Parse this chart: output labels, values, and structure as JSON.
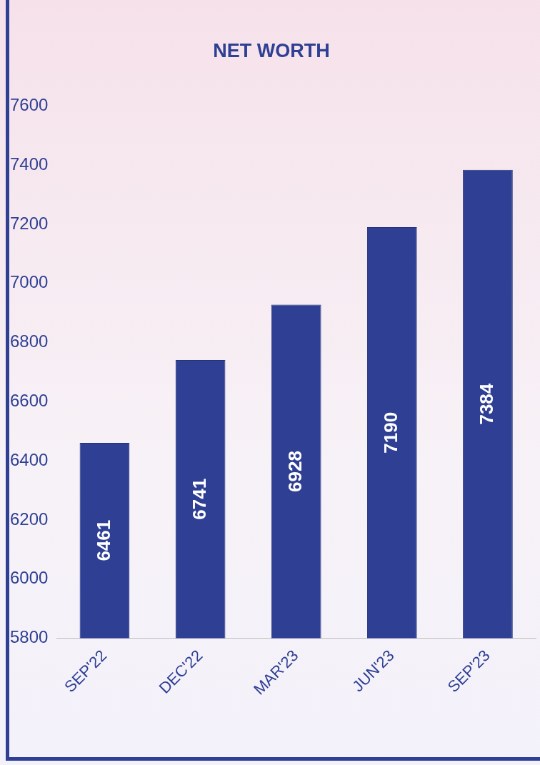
{
  "chart_data": {
    "type": "bar",
    "title": "NET WORTH",
    "categories": [
      "SEP'22",
      "DEC'22",
      "MAR'23",
      "JUN'23",
      "SEP'23"
    ],
    "values": [
      6461,
      6741,
      6928,
      7190,
      7384
    ],
    "color": "#2e3f94",
    "ylim": [
      5800,
      7600
    ],
    "yticks": [
      5800,
      6000,
      6200,
      6400,
      6600,
      6800,
      7000,
      7200,
      7400,
      7600
    ],
    "data_labels": true,
    "grid": false,
    "legend": false
  }
}
